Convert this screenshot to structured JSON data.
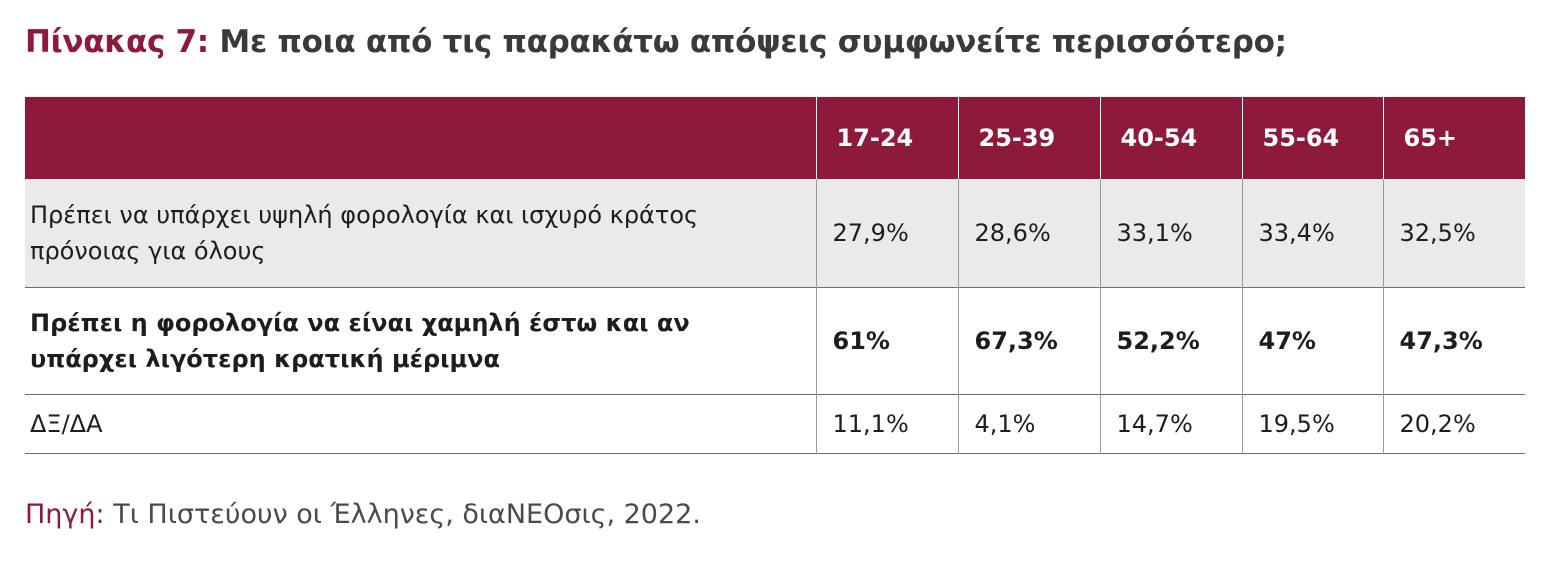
{
  "title": {
    "prefix": "Πίνακας 7:",
    "text": "Με ποια από τις παρακάτω απόψεις συμφωνείτε περισσότερο;"
  },
  "chart_data": {
    "type": "table",
    "columns": [
      "",
      "17-24",
      "25-39",
      "40-54",
      "55-64",
      "65+"
    ],
    "rows": [
      {
        "label": "Πρέπει να υπάρχει υψηλή φορολογία και ισχυρό κράτος πρόνοιας για όλους",
        "values": [
          "27,9%",
          "28,6%",
          "33,1%",
          "33,4%",
          "32,5%"
        ],
        "bold": false
      },
      {
        "label": "Πρέπει η φορολογία να είναι χαμηλή έστω και αν υπάρχει λιγότερη κρατική μέριμνα",
        "values": [
          "61%",
          "67,3%",
          "52,2%",
          "47%",
          "47,3%"
        ],
        "bold": true
      },
      {
        "label": "ΔΞ/ΔΑ",
        "values": [
          "11,1%",
          "4,1%",
          "14,7%",
          "19,5%",
          "20,2%"
        ],
        "bold": false
      }
    ]
  },
  "source": {
    "prefix": "Πηγή:",
    "text": "Τι Πιστεύουν οι Έλληνες, διαΝΕΟσις, 2022."
  },
  "colors": {
    "accent": "#8e1a3b",
    "row_shade": "#ebeae8"
  }
}
